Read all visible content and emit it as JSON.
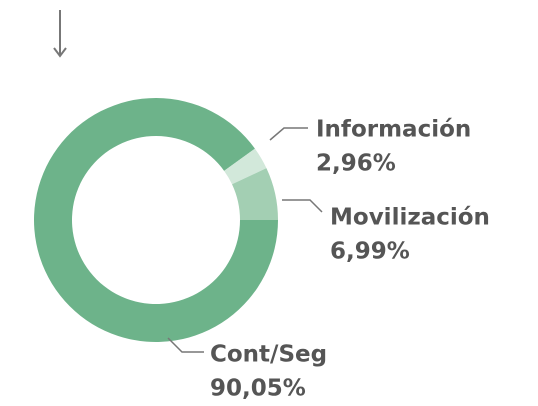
{
  "chart_data": {
    "type": "donut",
    "categories": [
      "Cont/Seg",
      "Información",
      "Movilización"
    ],
    "values": [
      90.05,
      2.96,
      6.99
    ],
    "value_labels": [
      "90,05%",
      "2,96%",
      "6,99%"
    ],
    "colors": [
      "#6db38a",
      "#d2e8da",
      "#a3cfb3"
    ]
  }
}
